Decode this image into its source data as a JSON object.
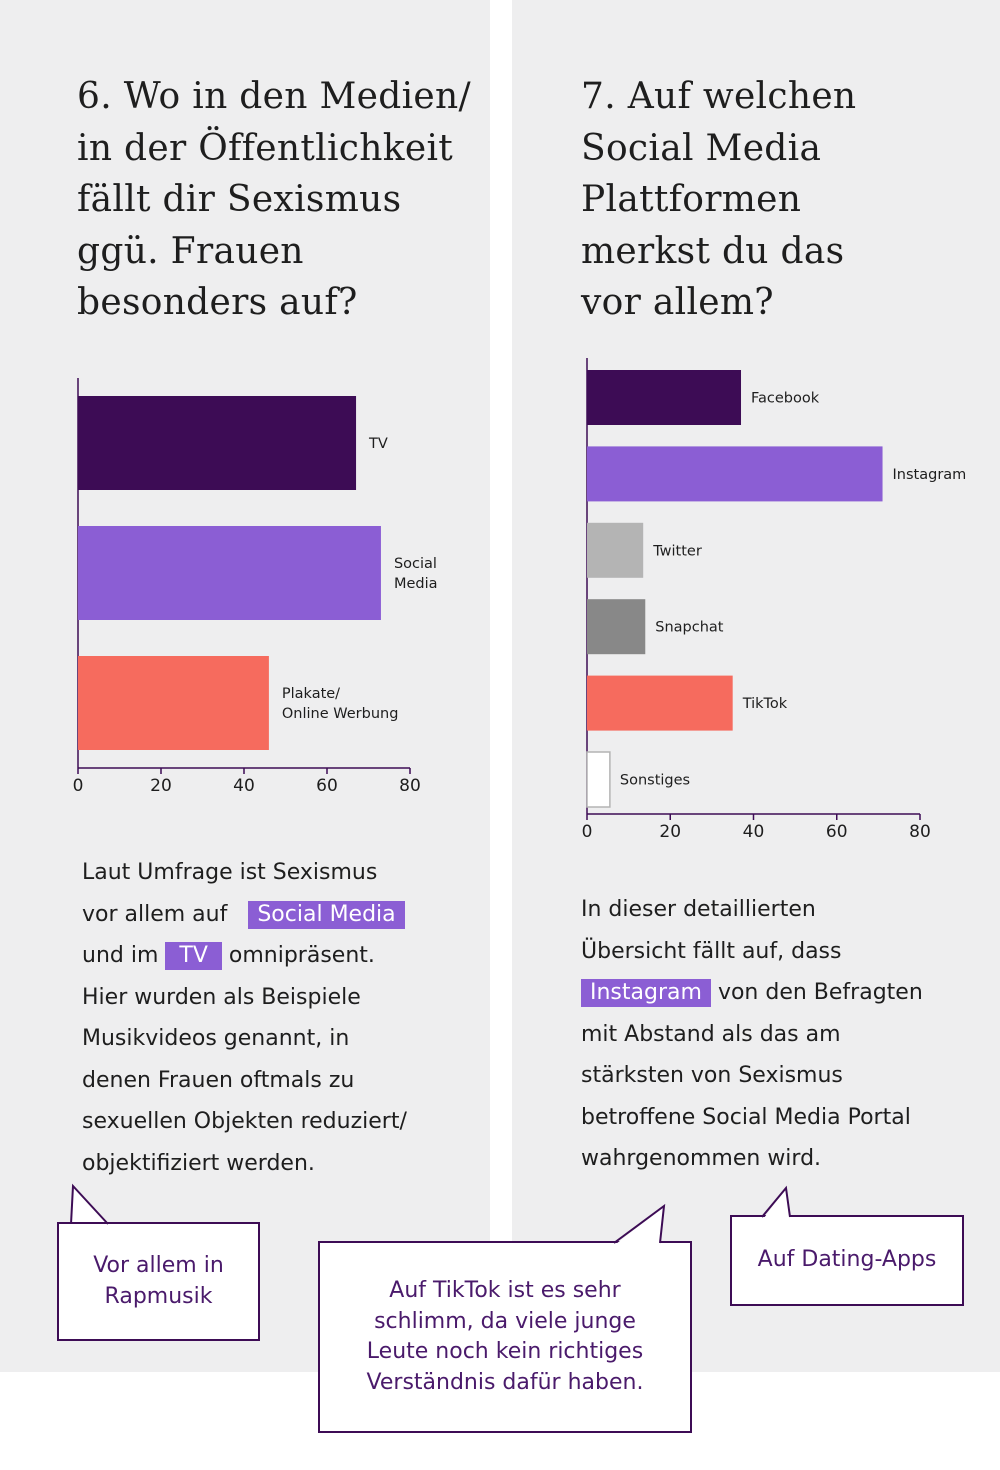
{
  "left": {
    "title": "6. Wo in den Medien/ in der Öffentlichkeit fällt dir Sexismus ggü. Frauen besonders auf?",
    "title_lines": [
      "6. Wo in den Medien/",
      "in der Öffentlichkeit",
      "fällt dir Sexismus",
      "ggü. Frauen",
      "besonders auf?"
    ],
    "text": {
      "line1": "Laut Umfrage ist Sexismus",
      "line2_pre": "vor allem auf",
      "line2_hl": "Social Media",
      "line3_pre": "und im",
      "line3_hl": "TV",
      "line3_post": "omnipräsent.",
      "line4": "Hier wurden als Beispiele",
      "line5": "Musikvideos genannt, in",
      "line6": "denen Frauen oftmals zu",
      "line7": "sexuellen Objekten reduziert/",
      "line8": "objektifiziert werden."
    }
  },
  "right": {
    "title": "7. Auf welchen Social Media Plattformen merkst du das vor allem?",
    "title_lines": [
      "7. Auf welchen",
      "Social Media",
      "Plattformen",
      "merkst du das",
      "vor allem?"
    ],
    "text": {
      "line1": "In dieser detaillierten",
      "line2": "Übersicht fällt auf, dass",
      "line3_hl": "Instagram",
      "line3_post": "von den Befragten",
      "line4": "mit Abstand als das am",
      "line5": "stärksten von Sexismus",
      "line6": "betroffene Social Media Portal",
      "line7": "wahrgenommen wird."
    }
  },
  "bubbles": {
    "b1_line1": "Vor allem in",
    "b1_line2": "Rapmusik",
    "b2_line1": "Auf TikTok ist es sehr",
    "b2_line2": "schlimm, da viele junge",
    "b2_line3": "Leute noch kein richtiges",
    "b2_line4": "Verständnis dafür haben.",
    "b3_line1": "Auf Dating-Apps"
  },
  "colors": {
    "dark_purple": "#3d0c55",
    "purple": "#8b5ed4",
    "coral": "#f66b5e",
    "light_gray": "#b4b4b4",
    "mid_gray": "#888888",
    "white": "#ffffff",
    "panel_bg": "#eeeeef"
  },
  "chart_data": [
    {
      "type": "bar",
      "orientation": "horizontal",
      "categories": [
        [
          "TV"
        ],
        [
          "Social",
          "Media"
        ],
        [
          "Plakate/",
          "Online Werbung"
        ]
      ],
      "values": [
        67,
        73,
        46
      ],
      "colors": [
        "#3d0c55",
        "#8b5ed4",
        "#f66b5e"
      ],
      "xlim": [
        0,
        80
      ],
      "xticks": [
        0,
        20,
        40,
        60,
        80
      ],
      "grid": false
    },
    {
      "type": "bar",
      "orientation": "horizontal",
      "categories": [
        [
          "Facebook"
        ],
        [
          "Instagram"
        ],
        [
          "Twitter"
        ],
        [
          "Snapchat"
        ],
        [
          "TikTok"
        ],
        [
          "Sonstiges"
        ]
      ],
      "values": [
        37,
        71,
        13.5,
        14,
        35,
        5.5
      ],
      "colors": [
        "#3d0c55",
        "#8b5ed4",
        "#b4b4b4",
        "#888888",
        "#f66b5e",
        "#ffffff"
      ],
      "xlim": [
        0,
        80
      ],
      "xticks": [
        0,
        20,
        40,
        60,
        80
      ],
      "grid": false
    }
  ]
}
